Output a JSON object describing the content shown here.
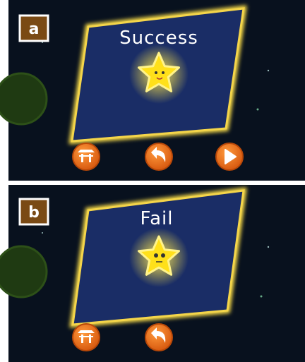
{
  "panels": [
    {
      "label": "a",
      "title": "Success"
    },
    {
      "label": "b",
      "title": "Fail"
    }
  ]
}
